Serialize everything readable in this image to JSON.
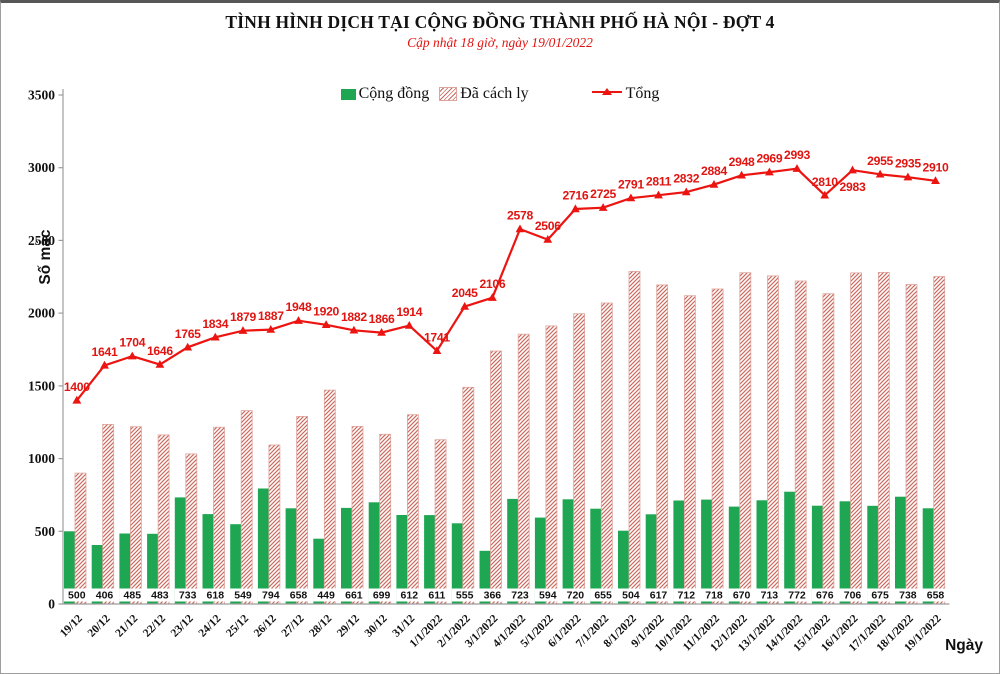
{
  "page": {
    "title": "TÌNH HÌNH DỊCH TẠI CỘNG ĐỒNG THÀNH PHỐ HÀ NỘI - ĐỢT 4",
    "subtitle": "Cập nhật 18 giờ, ngày 19/01/2022"
  },
  "legend": {
    "items": [
      {
        "label": "Cộng đồng",
        "swatch": "green-bar-swatch"
      },
      {
        "label": "Đã cách ly",
        "swatch": "hatched-bar-swatch"
      },
      {
        "label": "Tổng",
        "swatch": "red-line-triangle-swatch"
      }
    ]
  },
  "chart_data": {
    "type": "combo",
    "title": "TÌNH HÌNH DỊCH TẠI CỘNG ĐỒNG THÀNH PHỐ HÀ NỘI - ĐỢT 4",
    "subtitle": "Cập nhật 18 giờ, ngày 19/01/2022",
    "xlabel": "Ngày",
    "ylabel": "Số mắc",
    "ylim": [
      0,
      3500
    ],
    "yticks": [
      0,
      500,
      1000,
      1500,
      2000,
      2500,
      3000,
      3500
    ],
    "grid": false,
    "legend_position": "top",
    "categories": [
      "19/12",
      "20/12",
      "21/12",
      "22/12",
      "23/12",
      "24/12",
      "25/12",
      "26/12",
      "27/12",
      "28/12",
      "29/12",
      "30/12",
      "31/12",
      "1/1/2022",
      "2/1/2022",
      "3/1/2022",
      "4/1/2022",
      "5/1/2022",
      "6/1/2022",
      "7/1/2022",
      "8/1/2022",
      "9/1/2022",
      "10/1/2022",
      "11/1/2022",
      "12/1/2022",
      "13/1/2022",
      "14/1/2022",
      "15/1/2022",
      "16/1/2022",
      "17/1/2022",
      "18/1/2022",
      "19/1/2022"
    ],
    "series": [
      {
        "name": "Cộng đồng",
        "type": "bar",
        "style": "solid-green",
        "values": [
          500,
          406,
          485,
          483,
          733,
          618,
          549,
          794,
          658,
          449,
          661,
          699,
          612,
          611,
          555,
          366,
          723,
          594,
          720,
          655,
          504,
          617,
          712,
          718,
          670,
          713,
          772,
          676,
          706,
          675,
          738,
          658
        ],
        "labels_shown": true,
        "label_position": "inside-base-white-box"
      },
      {
        "name": "Đã cách ly",
        "type": "bar",
        "style": "hatched-red",
        "values": [
          900,
          1235,
          1219,
          1163,
          1032,
          1216,
          1330,
          1093,
          1290,
          1471,
          1221,
          1167,
          1302,
          1130,
          1490,
          1740,
          1855,
          1912,
          1996,
          2070,
          2287,
          2194,
          2120,
          2166,
          2278,
          2256,
          2221,
          2134,
          2277,
          2280,
          2197,
          2252
        ],
        "labels_shown": false,
        "note": "bar heights equal Tổng minus Cộng đồng"
      },
      {
        "name": "Tổng",
        "type": "line",
        "style": "red-line-triangle-markers",
        "values": [
          1400,
          1641,
          1704,
          1646,
          1765,
          1834,
          1879,
          1887,
          1948,
          1920,
          1882,
          1866,
          1914,
          1741,
          2045,
          2106,
          2578,
          2506,
          2716,
          2725,
          2791,
          2811,
          2832,
          2884,
          2948,
          2969,
          2993,
          2810,
          2983,
          2955,
          2935,
          2910
        ],
        "labels_shown": true,
        "label_position": "above",
        "label_below_indices": [
          28
        ]
      }
    ],
    "colors": {
      "community_green": "#1ea652",
      "isolated_hatch_red": "#c96a60",
      "isolated_border_pink": "#dfa59d",
      "total_line_red": "#ec1410",
      "data_label_red": "#e01511",
      "axis_gray": "#9c9c9c",
      "text_black": "#111111"
    }
  }
}
